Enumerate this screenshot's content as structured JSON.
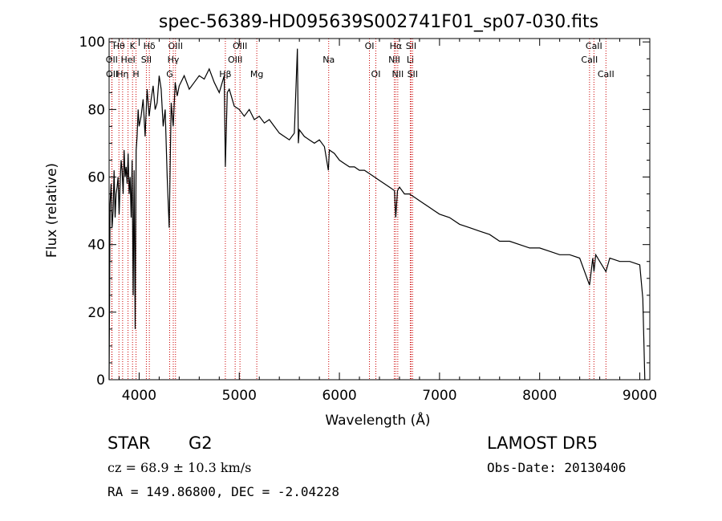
{
  "chart_data": {
    "type": "line",
    "title": "spec-56389-HD095639S002741F01_sp07-030.fits",
    "xlabel": "Wavelength (Å)",
    "ylabel": "Flux (relative)",
    "xlim": [
      3700,
      9100
    ],
    "ylim": [
      0,
      101
    ],
    "x_ticks": [
      4000,
      5000,
      6000,
      7000,
      8000,
      9000
    ],
    "y_ticks": [
      0,
      20,
      40,
      60,
      80,
      100
    ],
    "grid": false,
    "line_color": "#000000",
    "marker_color": "#cc0000",
    "series": [
      {
        "x": [
          3700,
          3710,
          3720,
          3730,
          3740,
          3750,
          3760,
          3770,
          3780,
          3790,
          3800,
          3810,
          3820,
          3830,
          3840,
          3850,
          3860,
          3870,
          3880,
          3890,
          3900,
          3910,
          3920,
          3930,
          3940,
          3950,
          3960,
          3970,
          3980,
          3990,
          4000,
          4020,
          4040,
          4060,
          4080,
          4100,
          4120,
          4140,
          4160,
          4180,
          4200,
          4220,
          4240,
          4260,
          4280,
          4300,
          4320,
          4340,
          4360,
          4380,
          4400,
          4450,
          4500,
          4550,
          4600,
          4650,
          4700,
          4750,
          4800,
          4850,
          4861,
          4880,
          4900,
          4950,
          5000,
          5050,
          5100,
          5150,
          5200,
          5250,
          5300,
          5350,
          5400,
          5450,
          5500,
          5550,
          5580,
          5590,
          5600,
          5650,
          5700,
          5750,
          5800,
          5850,
          5890,
          5900,
          5950,
          6000,
          6050,
          6100,
          6150,
          6200,
          6250,
          6300,
          6350,
          6400,
          6450,
          6500,
          6550,
          6563,
          6580,
          6600,
          6650,
          6700,
          6750,
          6800,
          6850,
          6900,
          6950,
          7000,
          7100,
          7200,
          7300,
          7400,
          7500,
          7600,
          7700,
          7800,
          7900,
          8000,
          8100,
          8200,
          8300,
          8400,
          8498,
          8530,
          8542,
          8560,
          8600,
          8662,
          8700,
          8800,
          8900,
          9000,
          9030,
          9050
        ],
        "y": [
          0,
          52,
          58,
          45,
          50,
          62,
          48,
          55,
          57,
          60,
          49,
          58,
          65,
          62,
          55,
          68,
          60,
          63,
          58,
          67,
          55,
          60,
          48,
          65,
          25,
          62,
          15,
          68,
          72,
          80,
          75,
          78,
          83,
          72,
          86,
          78,
          83,
          87,
          80,
          82,
          90,
          86,
          75,
          80,
          60,
          45,
          82,
          75,
          88,
          84,
          87,
          90,
          86,
          88,
          90,
          89,
          92,
          88,
          85,
          90,
          63,
          85,
          86,
          81,
          80,
          78,
          80,
          77,
          78,
          76,
          77,
          75,
          73,
          72,
          71,
          73,
          98,
          70,
          74,
          72,
          71,
          70,
          71,
          69,
          62,
          68,
          67,
          65,
          64,
          63,
          63,
          62,
          62,
          61,
          60,
          59,
          58,
          57,
          56,
          48,
          56,
          57,
          55,
          55,
          54,
          53,
          52,
          51,
          50,
          49,
          48,
          46,
          45,
          44,
          43,
          41,
          41,
          40,
          39,
          39,
          38,
          37,
          37,
          36,
          28,
          36,
          32,
          37,
          35,
          32,
          36,
          35,
          35,
          34,
          24,
          0
        ]
      }
    ],
    "line_markers": [
      {
        "label": "Hθ",
        "x": 3798,
        "row": 1
      },
      {
        "label": "OII",
        "x": 3727,
        "row": 2
      },
      {
        "label": "OII",
        "x": 3729,
        "row": 3
      },
      {
        "label": "Hη",
        "x": 3835,
        "row": 3
      },
      {
        "label": "HeI",
        "x": 3889,
        "row": 2
      },
      {
        "label": "K",
        "x": 3934,
        "row": 1
      },
      {
        "label": "H",
        "x": 3969,
        "row": 3
      },
      {
        "label": "Hδ",
        "x": 4102,
        "row": 1
      },
      {
        "label": "SII",
        "x": 4072,
        "row": 2
      },
      {
        "label": "OIII",
        "x": 4363,
        "row": 1
      },
      {
        "label": "Hγ",
        "x": 4341,
        "row": 2
      },
      {
        "label": "G",
        "x": 4305,
        "row": 3
      },
      {
        "label": "Hβ",
        "x": 4861,
        "row": 3
      },
      {
        "label": "OIII",
        "x": 5007,
        "row": 1
      },
      {
        "label": "OIII",
        "x": 4959,
        "row": 2
      },
      {
        "label": "Mg",
        "x": 5175,
        "row": 3
      },
      {
        "label": "Na",
        "x": 5893,
        "row": 2
      },
      {
        "label": "OI",
        "x": 6300,
        "row": 1
      },
      {
        "label": "OI",
        "x": 6364,
        "row": 3
      },
      {
        "label": "Hα",
        "x": 6563,
        "row": 1
      },
      {
        "label": "NII",
        "x": 6548,
        "row": 2
      },
      {
        "label": "NII",
        "x": 6583,
        "row": 3
      },
      {
        "label": "SII",
        "x": 6716,
        "row": 1
      },
      {
        "label": "Li",
        "x": 6708,
        "row": 2
      },
      {
        "label": "SII",
        "x": 6731,
        "row": 3
      },
      {
        "label": "CaII",
        "x": 8542,
        "row": 1
      },
      {
        "label": "CaII",
        "x": 8498,
        "row": 2
      },
      {
        "label": "CaII",
        "x": 8662,
        "row": 3
      }
    ]
  },
  "info": {
    "object": "STAR",
    "subclass": "G2",
    "survey": "LAMOST DR5",
    "cz": "cz = 68.9 ± 10.3 km/s",
    "obs_date": "Obs-Date: 20130406",
    "coords": "RA = 149.86800, DEC =  -2.04228"
  }
}
